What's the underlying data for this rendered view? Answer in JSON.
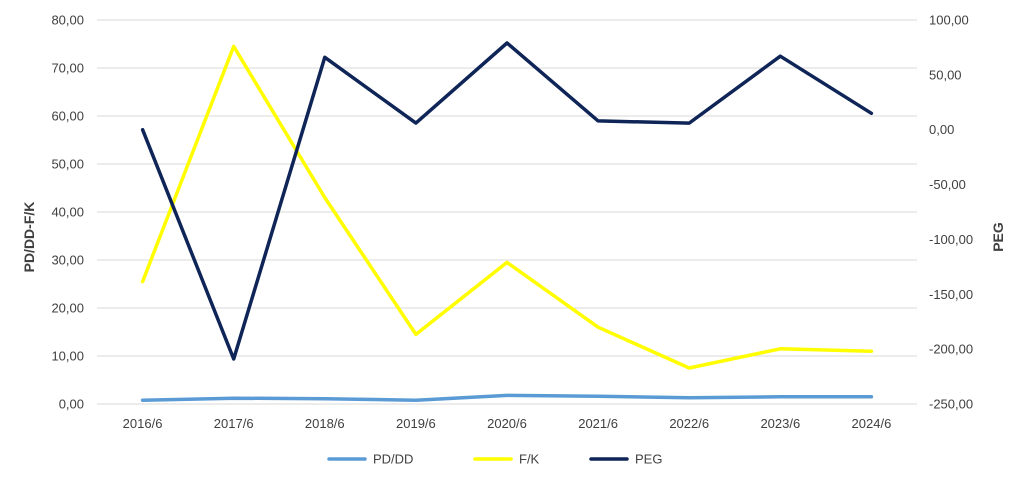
{
  "chart_data": {
    "type": "line",
    "title": "",
    "categories": [
      "2016/6",
      "2017/6",
      "2018/6",
      "2019/6",
      "2020/6",
      "2021/6",
      "2022/6",
      "2023/6",
      "2024/6"
    ],
    "y_left": {
      "label": "PD/DD-F/K",
      "range": [
        0,
        80
      ],
      "ticks": [
        "0,00",
        "10,00",
        "20,00",
        "30,00",
        "40,00",
        "50,00",
        "60,00",
        "70,00",
        "80,00"
      ]
    },
    "y_right": {
      "label": "PEG",
      "range": [
        -250,
        100
      ],
      "ticks": [
        "-250,00",
        "-200,00",
        "-150,00",
        "-100,00",
        "-50,00",
        "0,00",
        "50,00",
        "100,00"
      ]
    },
    "series": [
      {
        "name": "PD/DD",
        "axis": "left",
        "color": "#5b9bd5",
        "values": [
          0.8,
          1.2,
          1.1,
          0.8,
          1.8,
          1.6,
          1.3,
          1.5,
          1.5
        ]
      },
      {
        "name": "F/K",
        "axis": "left",
        "color": "#ffff00",
        "values": [
          25.5,
          74.5,
          43.0,
          14.5,
          29.5,
          16.0,
          7.5,
          11.5,
          11.0
        ]
      },
      {
        "name": "PEG",
        "axis": "right",
        "color": "#0f2557",
        "values": [
          0,
          -209,
          66,
          6,
          79,
          8,
          6,
          67,
          15
        ]
      }
    ],
    "grid": "horizontal",
    "legend_position": "bottom"
  }
}
